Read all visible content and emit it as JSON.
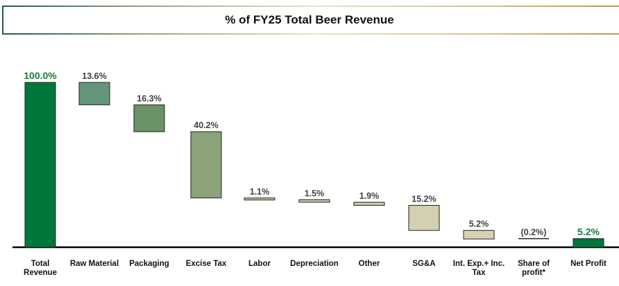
{
  "chart_data": {
    "type": "bar",
    "subtype": "waterfall",
    "title": "% of FY25 Total Beer Revenue",
    "xlabel": "",
    "ylabel": "",
    "ylim": [
      0,
      100
    ],
    "grid": false,
    "legend": "none",
    "categories": [
      [
        "Total",
        "Revenue"
      ],
      [
        "Raw Material"
      ],
      [
        "Packaging"
      ],
      [
        "Excise Tax"
      ],
      [
        "Labor"
      ],
      [
        "Depreciation"
      ],
      [
        "Other"
      ],
      [
        "SG&A"
      ],
      [
        "Int. Exp.+ Inc.",
        "Tax"
      ],
      [
        "Share of",
        "profit*"
      ],
      [
        "Net Profit"
      ]
    ],
    "values": [
      100.0,
      -13.6,
      -16.3,
      -40.2,
      -1.1,
      -1.5,
      -1.9,
      -15.2,
      -5.2,
      0.2,
      5.2
    ],
    "kinds": [
      "total",
      "delta",
      "delta",
      "delta",
      "delta",
      "delta",
      "delta",
      "delta",
      "delta",
      "delta",
      "total"
    ],
    "data_labels": [
      "100.0%",
      "13.6%",
      "16.3%",
      "40.2%",
      "1.1%",
      "1.5%",
      "1.9%",
      "15.2%",
      "5.2%",
      "(0.2%)",
      "5.2%"
    ],
    "colors": [
      "#00773a",
      "#64957a",
      "#6a9266",
      "#8aa378",
      "#c4c4a0",
      "#c8c8a6",
      "#cccaa6",
      "#d4cfae",
      "#d8d2b2",
      "#d8d2b2",
      "#00773a"
    ],
    "label_colors": [
      "#1a7a3c",
      "#404040",
      "#404040",
      "#404040",
      "#404040",
      "#404040",
      "#404040",
      "#404040",
      "#404040",
      "#404040",
      "#1a7a3c"
    ]
  }
}
